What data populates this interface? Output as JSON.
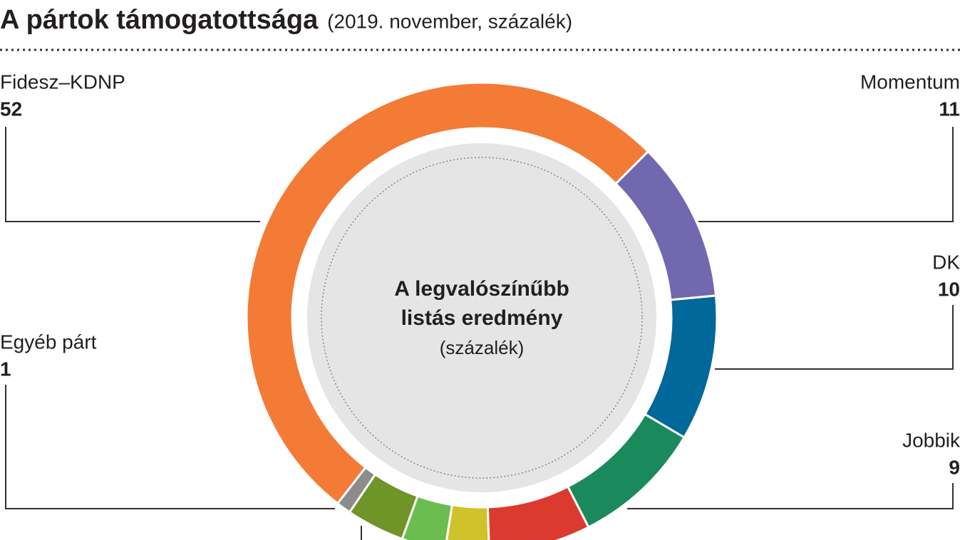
{
  "chart_data": {
    "type": "donut",
    "title": "A pártok támogatottsága",
    "subtitle": "(2019. november, százalék)",
    "center_label": [
      "A legvalószínűbb",
      "listás eredmény"
    ],
    "center_sublabel": "(százalék)",
    "categories": [
      "Fidesz–KDNP",
      "Momentum",
      "DK",
      "Jobbik",
      null,
      null,
      null,
      null,
      "Egyéb párt"
    ],
    "values": [
      52,
      11,
      10,
      9,
      7,
      3,
      3,
      4,
      1
    ],
    "colors": [
      "#f47b35",
      "#7268b0",
      "#00689a",
      "#1a8a5c",
      "#dc3a2e",
      "#cfc22a",
      "#6cbd4f",
      "#6f9428",
      "#8c8c8c"
    ]
  }
}
